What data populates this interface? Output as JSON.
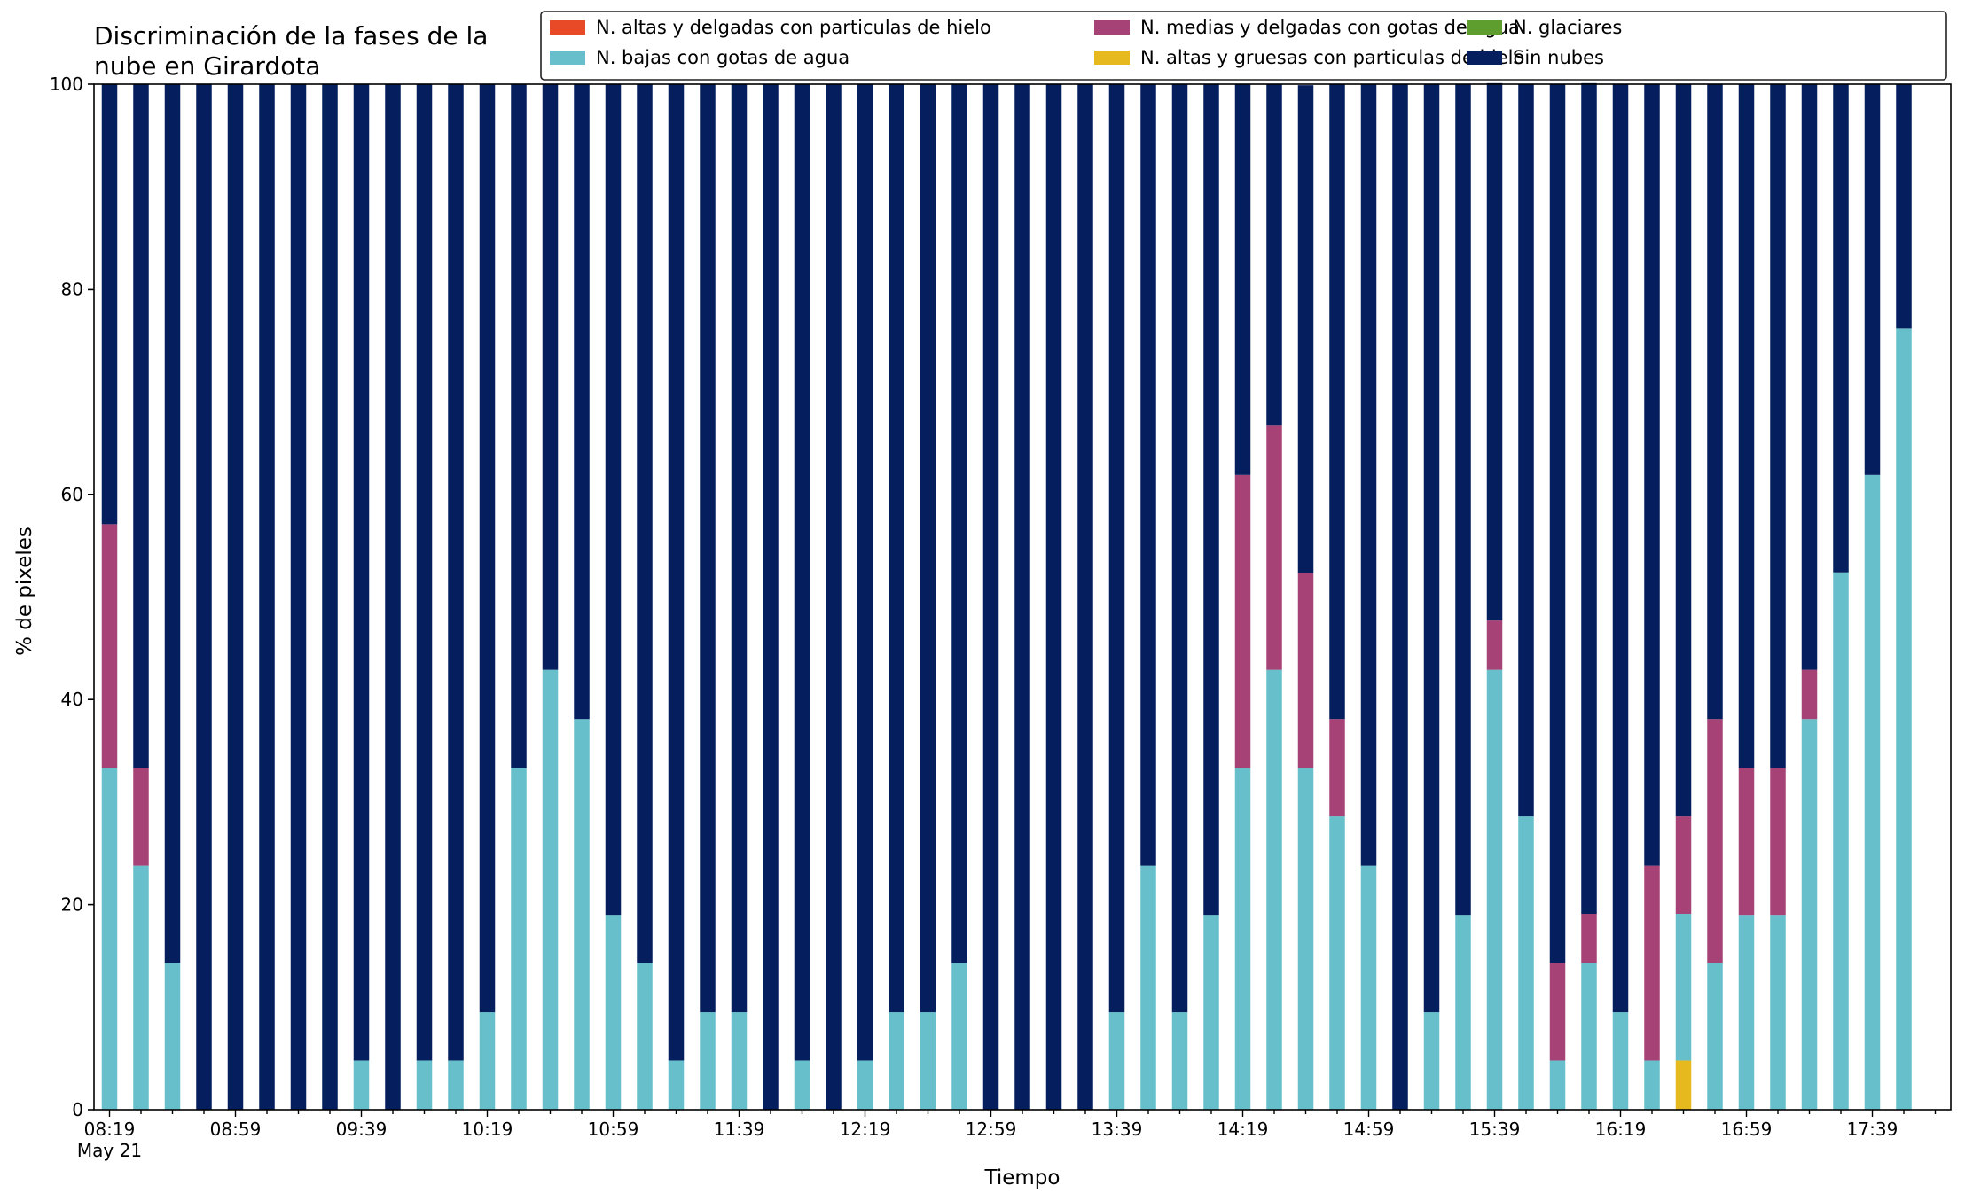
{
  "chart_data": {
    "type": "bar",
    "stacked": true,
    "title_lines": [
      "Discriminación de la fases de la",
      "nube en Girardota"
    ],
    "xlabel": "Tiempo",
    "ylabel": "% de pixeles",
    "ylim": [
      0,
      100
    ],
    "y_ticks": [
      "0",
      "20",
      "40",
      "60",
      "80",
      "100"
    ],
    "x_tick_labels": [
      "08:19",
      "08:59",
      "09:39",
      "10:19",
      "10:59",
      "11:39",
      "12:19",
      "12:59",
      "13:39",
      "14:19",
      "14:59",
      "15:39",
      "16:19",
      "16:59",
      "17:39"
    ],
    "x_tick_sub": "May 21",
    "grid": false,
    "legend_placement": "top-right",
    "categories": [
      "08:19",
      "08:29",
      "08:39",
      "08:49",
      "08:59",
      "09:09",
      "09:19",
      "09:29",
      "09:39",
      "09:49",
      "09:59",
      "10:09",
      "10:19",
      "10:29",
      "10:39",
      "10:49",
      "10:59",
      "11:09",
      "11:19",
      "11:29",
      "11:39",
      "11:49",
      "11:59",
      "12:09",
      "12:19",
      "12:29",
      "12:39",
      "12:49",
      "12:59",
      "13:09",
      "13:19",
      "13:29",
      "13:39",
      "13:49",
      "13:59",
      "14:09",
      "14:19",
      "14:29",
      "14:39",
      "14:49",
      "14:59",
      "15:09",
      "15:19",
      "15:29",
      "15:39",
      "15:49",
      "15:59",
      "16:09",
      "16:19",
      "16:29",
      "16:39",
      "16:49",
      "16:59",
      "17:09",
      "17:19",
      "17:29",
      "17:39",
      "17:49"
    ],
    "series": [
      {
        "name": "N. altas y delgadas con particulas de hielo",
        "color": "#e84a27",
        "values": [
          0,
          0,
          0,
          0,
          0,
          0,
          0,
          0,
          0,
          0,
          0,
          0,
          0,
          0,
          0,
          0,
          0,
          0,
          0,
          0,
          0,
          0,
          0,
          0,
          0,
          0,
          0,
          0,
          0,
          0,
          0,
          0,
          0,
          0,
          0,
          0,
          0,
          0,
          0,
          0,
          0,
          0,
          0,
          0,
          0,
          0,
          0,
          0,
          0,
          0,
          0,
          0,
          0,
          0,
          0,
          0,
          0,
          0
        ]
      },
      {
        "name": "N. altas y gruesas con particulas de hielo",
        "color": "#e6b91e",
        "values": [
          0,
          0,
          0,
          0,
          0,
          0,
          0,
          0,
          0,
          0,
          0,
          0,
          0,
          0,
          0,
          0,
          0,
          0,
          0,
          0,
          0,
          0,
          0,
          0,
          0,
          0,
          0,
          0,
          0,
          0,
          0,
          0,
          0,
          0,
          0,
          0,
          0,
          0,
          0,
          0,
          0,
          0,
          0,
          0,
          0,
          0,
          0,
          0,
          0,
          0,
          4.8,
          0,
          0,
          0,
          0,
          0,
          0,
          0
        ]
      },
      {
        "name": "N. bajas con gotas de agua",
        "color": "#66bfca",
        "values": [
          33.3,
          23.8,
          14.3,
          0,
          0,
          0,
          0,
          0,
          4.8,
          0,
          4.8,
          4.8,
          9.5,
          33.3,
          42.9,
          38.1,
          19.0,
          14.3,
          4.8,
          9.5,
          9.5,
          0,
          4.8,
          0,
          4.8,
          9.5,
          9.5,
          14.3,
          0,
          0,
          0,
          0,
          9.5,
          23.8,
          9.5,
          19.0,
          33.3,
          42.9,
          33.3,
          28.6,
          23.8,
          0,
          9.5,
          19.0,
          42.9,
          28.6,
          4.8,
          14.3,
          9.5,
          4.8,
          14.3,
          14.3,
          19.0,
          19.0,
          38.1,
          52.4,
          61.9,
          76.2
        ]
      },
      {
        "name": "N. glaciares",
        "color": "#5d9e2f",
        "values": [
          0,
          0,
          0,
          0,
          0,
          0,
          0,
          0,
          0,
          0,
          0,
          0,
          0,
          0,
          0,
          0,
          0,
          0,
          0,
          0,
          0,
          0,
          0,
          0,
          0,
          0,
          0,
          0,
          0,
          0,
          0,
          0,
          0,
          0,
          0,
          0,
          0,
          0,
          0,
          0,
          0,
          0,
          0,
          0,
          0,
          0,
          0,
          0,
          0,
          0,
          0,
          0,
          0,
          0,
          0,
          0,
          0,
          0
        ]
      },
      {
        "name": "N. medias y delgadas con gotas de agua",
        "color": "#a64276",
        "values": [
          23.8,
          9.5,
          0,
          0,
          0,
          0,
          0,
          0,
          0,
          0,
          0,
          0,
          0,
          0,
          0,
          0,
          0,
          0,
          0,
          0,
          0,
          0,
          0,
          0,
          0,
          0,
          0,
          0,
          0,
          0,
          0,
          0,
          0,
          0,
          0,
          0,
          28.6,
          23.8,
          19.0,
          9.5,
          0,
          0,
          0,
          0,
          4.8,
          0,
          9.5,
          4.8,
          0,
          19.0,
          9.5,
          23.8,
          14.3,
          14.3,
          4.8,
          0,
          0,
          0
        ]
      },
      {
        "name": "Sin nubes",
        "color": "#041e5e",
        "values": [
          42.9,
          66.7,
          85.7,
          100,
          100,
          100,
          100,
          100,
          95.2,
          100,
          95.2,
          95.2,
          90.5,
          66.7,
          57.1,
          61.9,
          81.0,
          85.7,
          95.2,
          90.5,
          90.5,
          100,
          95.2,
          100,
          95.2,
          90.5,
          90.5,
          85.7,
          100,
          100,
          100,
          100,
          90.5,
          76.2,
          90.5,
          81.0,
          38.1,
          33.3,
          47.6,
          61.9,
          76.2,
          100,
          90.5,
          81.0,
          52.4,
          71.4,
          85.7,
          81.0,
          90.5,
          76.2,
          71.4,
          61.9,
          66.7,
          66.7,
          57.1,
          47.6,
          38.1,
          23.8
        ]
      }
    ],
    "legend_order": [
      0,
      2,
      4,
      1,
      3,
      5
    ]
  }
}
